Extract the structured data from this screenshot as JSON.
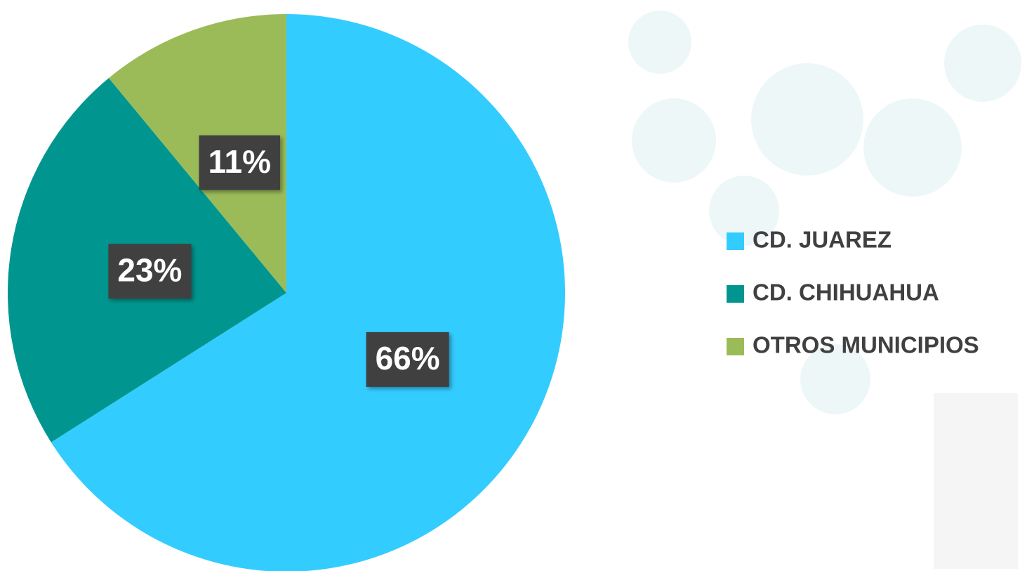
{
  "chart_data": {
    "type": "pie",
    "categories": [
      "CD. JUAREZ",
      "CD. CHIHUAHUA",
      "OTROS MUNICIPIOS"
    ],
    "values": [
      66,
      23,
      11
    ],
    "value_labels": [
      "66%",
      "23%",
      "11%"
    ],
    "colors": [
      "#33ccff",
      "#00968f",
      "#9bbb59"
    ],
    "legend": "right"
  }
}
